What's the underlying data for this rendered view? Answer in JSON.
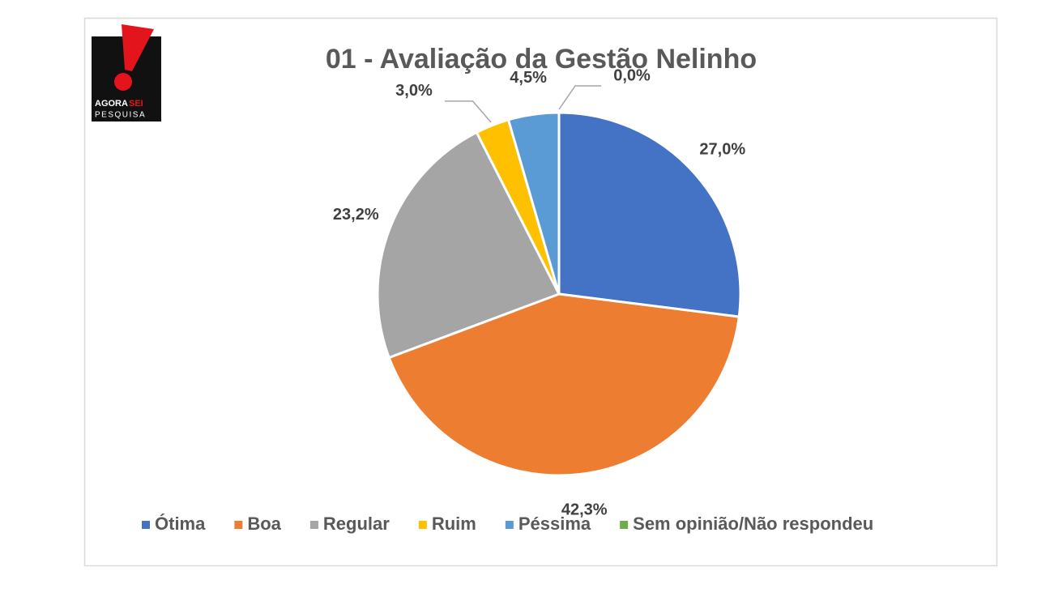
{
  "chart_data": {
    "type": "pie",
    "title": "01 - Avaliação da Gestão Nelinho",
    "logo_text": [
      "AGORA",
      "SEI",
      "PESQUISA"
    ],
    "categories": [
      "Ótima",
      "Boa",
      "Regular",
      "Ruim",
      "Péssima",
      "Sem opinião/Não respondeu"
    ],
    "values": [
      27.0,
      42.3,
      23.2,
      3.0,
      4.5,
      0.0
    ],
    "value_labels": [
      "27,0%",
      "42,3%",
      "23,2%",
      "3,0%",
      "4,5%",
      "0,0%"
    ],
    "colors": [
      "#4472c4",
      "#ed7d31",
      "#a5a5a5",
      "#ffc000",
      "#5b9bd5",
      "#70ad47"
    ],
    "legend": "bottom"
  }
}
